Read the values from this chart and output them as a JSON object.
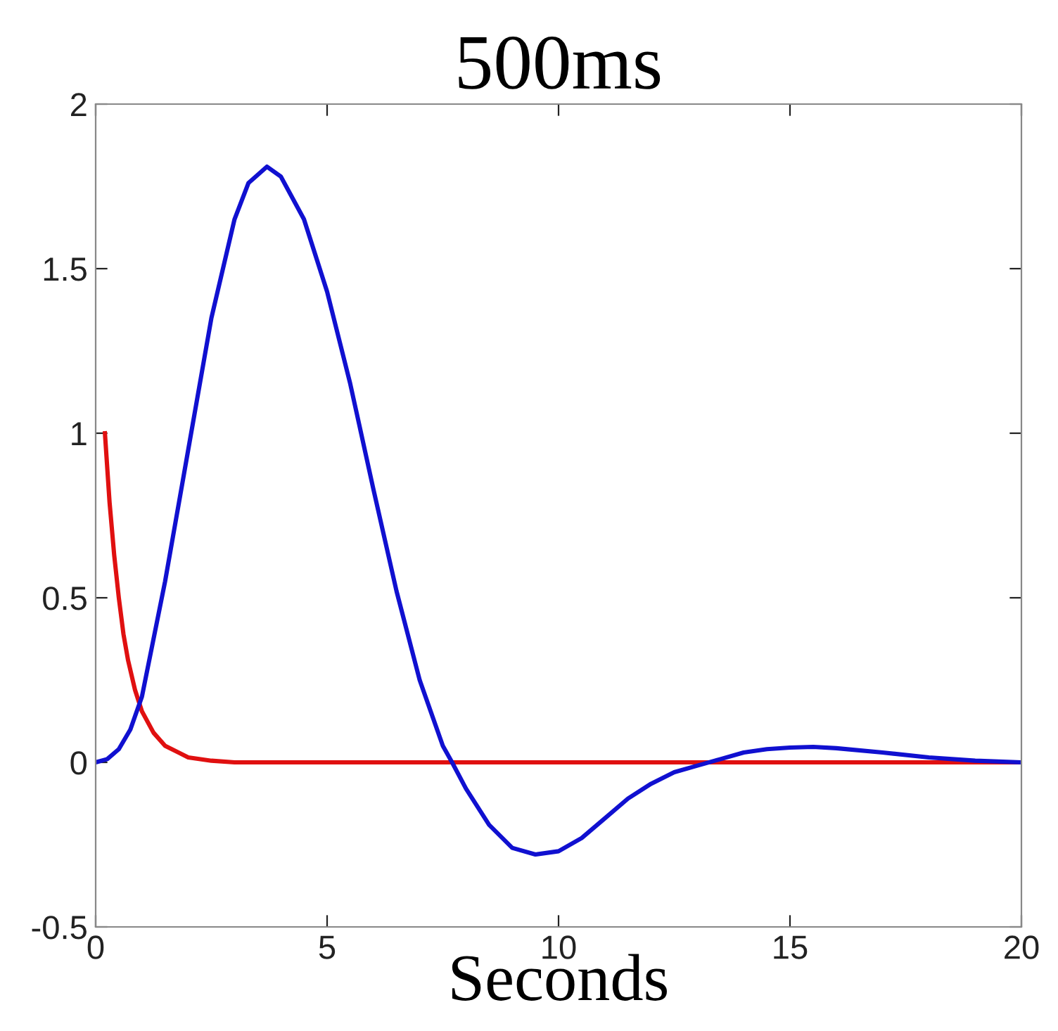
{
  "chart_data": {
    "type": "line",
    "title": "500ms",
    "xlabel": "Seconds",
    "xlim": [
      0,
      20
    ],
    "xticks": [
      0,
      5,
      10,
      15,
      20
    ],
    "ylim": [
      -0.5,
      2
    ],
    "yticks": [
      -0.5,
      0,
      0.5,
      1,
      1.5,
      2
    ],
    "grid": false,
    "marker": "none",
    "line_style": "solid",
    "series": [
      {
        "color": "#e01010",
        "x": [
          0.2,
          0.3,
          0.4,
          0.5,
          0.6,
          0.7,
          0.85,
          1,
          1.25,
          1.5,
          2,
          2.5,
          3,
          5,
          10,
          15,
          20
        ],
        "values": [
          1,
          0.79,
          0.63,
          0.5,
          0.39,
          0.31,
          0.22,
          0.155,
          0.09,
          0.05,
          0.015,
          0.005,
          0,
          0,
          0,
          0,
          0
        ]
      },
      {
        "color": "#1010d0",
        "x": [
          0,
          0.25,
          0.5,
          0.75,
          1,
          1.5,
          2,
          2.5,
          3,
          3.3,
          3.7,
          4,
          4.5,
          5,
          5.5,
          6,
          6.5,
          7,
          7.5,
          7.7,
          8,
          8.5,
          9,
          9.5,
          10,
          10.5,
          11,
          11.5,
          12,
          12.5,
          13,
          13.5,
          14,
          14.5,
          15,
          15.5,
          16,
          17,
          18,
          19,
          20
        ],
        "values": [
          0,
          0.01,
          0.04,
          0.1,
          0.2,
          0.55,
          0.95,
          1.35,
          1.65,
          1.76,
          1.81,
          1.78,
          1.65,
          1.43,
          1.15,
          0.83,
          0.52,
          0.25,
          0.05,
          0,
          -0.08,
          -0.19,
          -0.26,
          -0.28,
          -0.27,
          -0.23,
          -0.17,
          -0.11,
          -0.065,
          -0.03,
          -0.01,
          0.01,
          0.03,
          0.04,
          0.045,
          0.047,
          0.043,
          0.03,
          0.015,
          0.005,
          0
        ]
      }
    ]
  }
}
